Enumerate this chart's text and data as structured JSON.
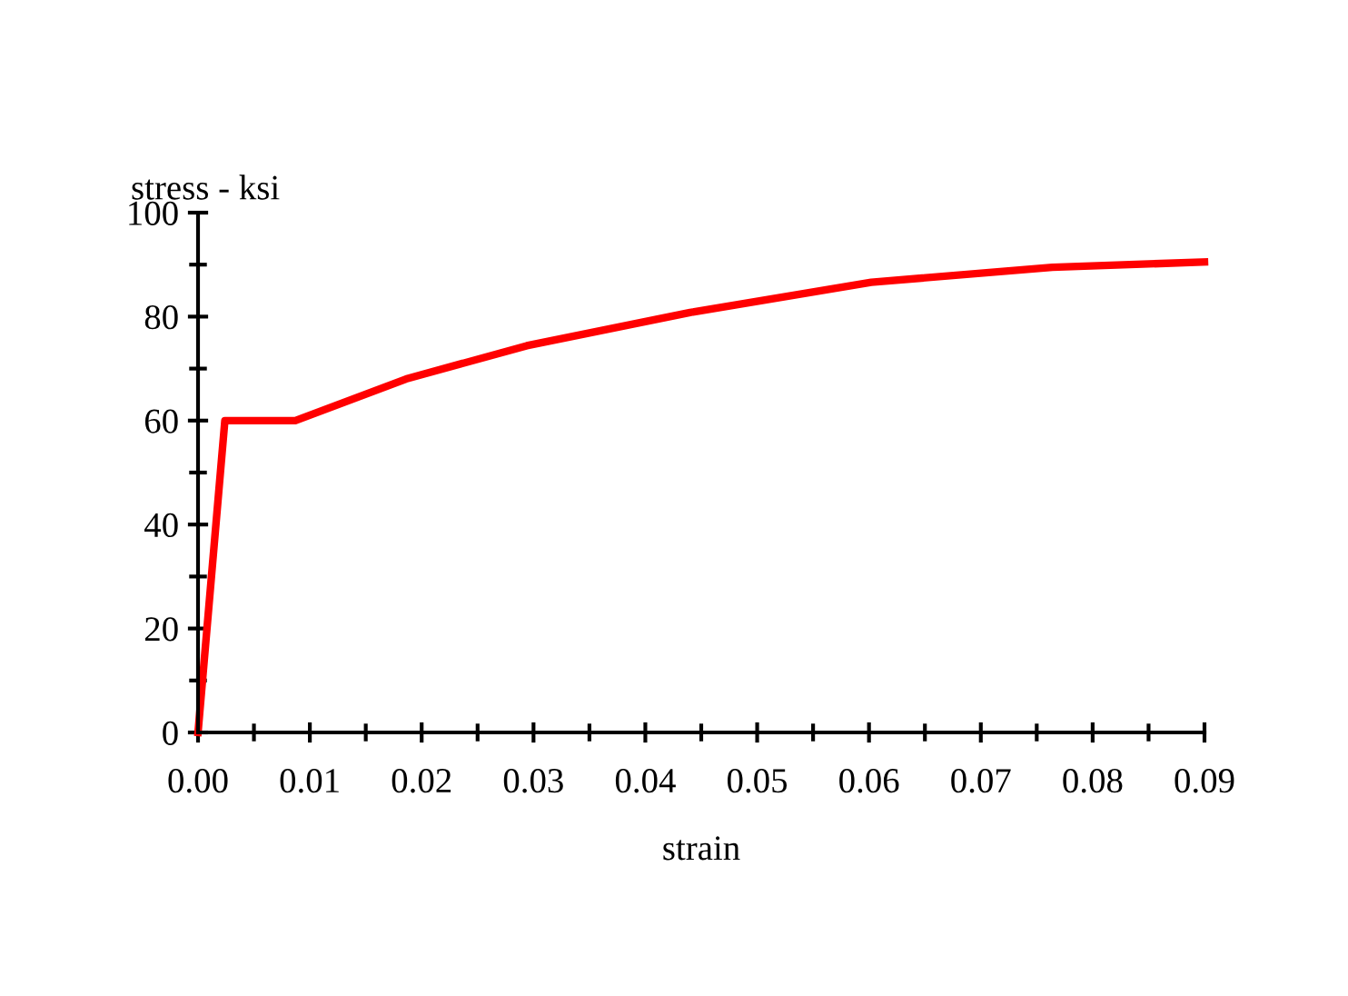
{
  "chart_data": {
    "type": "line",
    "xlabel": "strain",
    "ylabel": "stress - ksi",
    "x": [
      0,
      0.0024,
      0.0087,
      0.0186,
      0.0294,
      0.044,
      0.0602,
      0.0764,
      0.09
    ],
    "series": [
      {
        "color": "#ff0000",
        "values": [
          0,
          60,
          60,
          68,
          74.4,
          80.8,
          86.6,
          89.5,
          90.5
        ]
      }
    ],
    "xlim": [
      0,
      0.09
    ],
    "xticks": [
      {
        "value": 0,
        "label": "0.00"
      },
      {
        "value": 0.01,
        "label": "0.01"
      },
      {
        "value": 0.02,
        "label": "0.02"
      },
      {
        "value": 0.03,
        "label": "0.03"
      },
      {
        "value": 0.04,
        "label": "0.04"
      },
      {
        "value": 0.05,
        "label": "0.05"
      },
      {
        "value": 0.06,
        "label": "0.06"
      },
      {
        "value": 0.07,
        "label": "0.07"
      },
      {
        "value": 0.08,
        "label": "0.08"
      },
      {
        "value": 0.09,
        "label": "0.09"
      }
    ],
    "ylim": [
      0,
      100
    ],
    "yticks": [
      0,
      20,
      40,
      60,
      80,
      100
    ],
    "grid": false,
    "legend": false
  }
}
